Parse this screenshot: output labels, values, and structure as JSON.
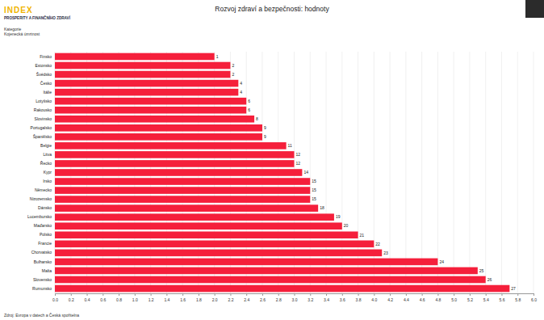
{
  "header": {
    "brand": "INDEX",
    "tagline": "PROSPERITY A FINANČNÍHO ZDRAVÍ",
    "category_heading": "Kategorie"
  },
  "footer": {
    "source": "Zdroj: Evropa v datech a Česká spořitelna"
  },
  "chart_data": {
    "type": "bar",
    "orientation": "horizontal",
    "title": "Rozvoj zdraví a bezpečnosti: hodnoty",
    "subtitle": "Kojenecká úmrtnost",
    "categories": [
      "Finsko",
      "Estonsko",
      "Švédsko",
      "Česko",
      "Itálie",
      "Lotyšsko",
      "Rakousko",
      "Slovinsko",
      "Portugalsko",
      "Španělsko",
      "Belgie",
      "Litva",
      "Řecko",
      "Kypr",
      "Irsko",
      "Německo",
      "Nizozemsko",
      "Dánsko",
      "Lucembursko",
      "Maďarsko",
      "Polsko",
      "Francie",
      "Chorvatsko",
      "Bulharsko",
      "Malta",
      "Slovensko",
      "Rumunsko"
    ],
    "values": [
      2.0,
      2.2,
      2.2,
      2.3,
      2.3,
      2.4,
      2.4,
      2.5,
      2.6,
      2.6,
      2.9,
      3.0,
      3.0,
      3.1,
      3.2,
      3.2,
      3.2,
      3.3,
      3.5,
      3.6,
      3.8,
      4.0,
      4.1,
      4.8,
      5.3,
      5.4,
      5.7
    ],
    "ranks": [
      1,
      2,
      2,
      4,
      4,
      6,
      6,
      8,
      9,
      9,
      11,
      12,
      12,
      14,
      15,
      15,
      15,
      18,
      19,
      20,
      21,
      22,
      23,
      24,
      25,
      26,
      27
    ],
    "color": "#f51f3b",
    "xlim": [
      0,
      6
    ],
    "xticks": [
      {
        "value": 0,
        "label": "0.0"
      },
      0.2,
      0.4,
      0.6,
      0.8,
      {
        "value": 1,
        "label": "1.0"
      },
      1.2,
      1.4,
      1.6,
      1.8,
      {
        "value": 2,
        "label": "2.0"
      },
      2.2,
      2.4,
      2.6,
      2.8,
      {
        "value": 3,
        "label": "3.0"
      },
      3.2,
      3.4,
      3.6,
      3.8,
      {
        "value": 4,
        "label": "4.0"
      },
      4.2,
      4.4,
      4.6,
      4.8,
      {
        "value": 5,
        "label": "5.0"
      },
      5.2,
      5.4,
      5.6,
      5.8,
      {
        "value": 6,
        "label": "6.0"
      }
    ],
    "grid": true
  }
}
